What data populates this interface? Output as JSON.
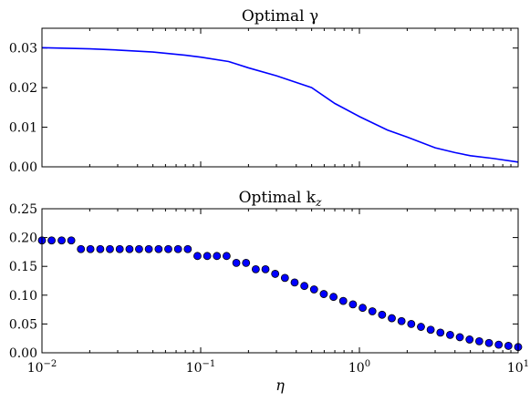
{
  "chart_data": [
    {
      "type": "line",
      "title": "Optimal γ",
      "xlabel": "",
      "ylabel": "",
      "xscale": "log",
      "xlim": [
        0.01,
        10
      ],
      "ylim": [
        0,
        0.035
      ],
      "grid": false,
      "yticks": [
        {
          "value": 0.0,
          "label": "0.00"
        },
        {
          "value": 0.01,
          "label": "0.01"
        },
        {
          "value": 0.02,
          "label": "0.02"
        },
        {
          "value": 0.03,
          "label": "0.03"
        }
      ],
      "color": "#0000ff",
      "series": [
        {
          "x": [
            0.01,
            0.02,
            0.03,
            0.05,
            0.08,
            0.1,
            0.15,
            0.2,
            0.3,
            0.5,
            0.7,
            1.0,
            1.5,
            2.0,
            3.0,
            4.0,
            5.0,
            7.0,
            10.0
          ],
          "y": [
            0.0301,
            0.0298,
            0.0295,
            0.029,
            0.0282,
            0.0277,
            0.0266,
            0.025,
            0.023,
            0.02,
            0.016,
            0.0127,
            0.0093,
            0.0075,
            0.0048,
            0.0036,
            0.0028,
            0.0021,
            0.0012
          ]
        }
      ]
    },
    {
      "type": "scatter",
      "title": "Optimal k",
      "title_sub": "z",
      "xlabel": "η",
      "ylabel": "",
      "xscale": "log",
      "xlim": [
        0.01,
        10
      ],
      "ylim": [
        0,
        0.25
      ],
      "grid": false,
      "xticks": [
        {
          "value": 0.01,
          "base": "10",
          "exp": "−2"
        },
        {
          "value": 0.1,
          "base": "10",
          "exp": "−1"
        },
        {
          "value": 1,
          "base": "10",
          "exp": "0"
        },
        {
          "value": 10,
          "base": "10",
          "exp": "1"
        }
      ],
      "yticks": [
        {
          "value": 0.0,
          "label": "0.00"
        },
        {
          "value": 0.05,
          "label": "0.05"
        },
        {
          "value": 0.1,
          "label": "0.10"
        },
        {
          "value": 0.15,
          "label": "0.15"
        },
        {
          "value": 0.2,
          "label": "0.20"
        },
        {
          "value": 0.25,
          "label": "0.25"
        }
      ],
      "marker_color": "#0000ff",
      "marker_edge": "#000000",
      "series": [
        {
          "x": [
            0.01,
            0.0115,
            0.0133,
            0.0153,
            0.0176,
            0.0202,
            0.0233,
            0.0268,
            0.0309,
            0.0356,
            0.0409,
            0.0471,
            0.0543,
            0.0625,
            0.072,
            0.0829,
            0.0954,
            0.1099,
            0.1265,
            0.1456,
            0.1677,
            0.1931,
            0.2223,
            0.256,
            0.2947,
            0.3393,
            0.3907,
            0.4498,
            0.5179,
            0.5964,
            0.6866,
            0.7906,
            0.9103,
            1.0481,
            1.2068,
            1.3895,
            1.5999,
            1.8421,
            2.121,
            2.4421,
            2.8118,
            3.2375,
            3.7276,
            4.2919,
            4.9417,
            5.6898,
            6.5513,
            7.5431,
            8.6851,
            10.0
          ],
          "y": [
            0.195,
            0.195,
            0.195,
            0.195,
            0.18,
            0.18,
            0.18,
            0.18,
            0.18,
            0.18,
            0.18,
            0.18,
            0.18,
            0.18,
            0.18,
            0.18,
            0.168,
            0.168,
            0.168,
            0.168,
            0.156,
            0.156,
            0.145,
            0.145,
            0.137,
            0.13,
            0.122,
            0.116,
            0.11,
            0.102,
            0.097,
            0.09,
            0.084,
            0.078,
            0.072,
            0.066,
            0.06,
            0.055,
            0.05,
            0.045,
            0.04,
            0.035,
            0.031,
            0.027,
            0.023,
            0.02,
            0.017,
            0.014,
            0.012,
            0.01
          ]
        }
      ]
    }
  ]
}
